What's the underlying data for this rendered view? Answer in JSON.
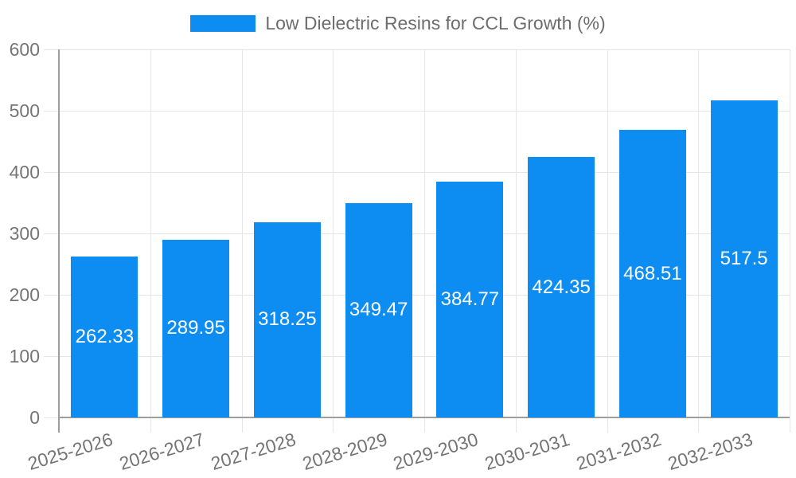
{
  "legend": {
    "label": "Low Dielectric Resins for CCL Growth (%)"
  },
  "colors": {
    "bar": "#0d8df2",
    "grid": "#e6e6e6",
    "axis": "#9e9e9e",
    "tick_text": "#757575",
    "legend_text": "#6d6d6d",
    "value_text": "#ffffff",
    "background": "#ffffff"
  },
  "chart_data": {
    "type": "bar",
    "title": "Low Dielectric Resins for CCL Growth (%)",
    "categories": [
      "2025-2026",
      "2026-2027",
      "2027-2028",
      "2028-2029",
      "2029-2030",
      "2030-2031",
      "2031-2032",
      "2032-2033"
    ],
    "values": [
      262.33,
      289.95,
      318.25,
      349.47,
      384.77,
      424.35,
      468.51,
      517.5
    ],
    "value_labels": [
      "262.33",
      "289.95",
      "318.25",
      "349.47",
      "384.77",
      "424.35",
      "468.51",
      "517.5"
    ],
    "xlabel": "",
    "ylabel": "",
    "ylim": [
      0,
      600
    ],
    "yticks": [
      0,
      100,
      200,
      300,
      400,
      500,
      600
    ],
    "grid": true,
    "legend_position": "top",
    "value_label_position": "inside-center",
    "xtick_rotation_deg": -17
  }
}
